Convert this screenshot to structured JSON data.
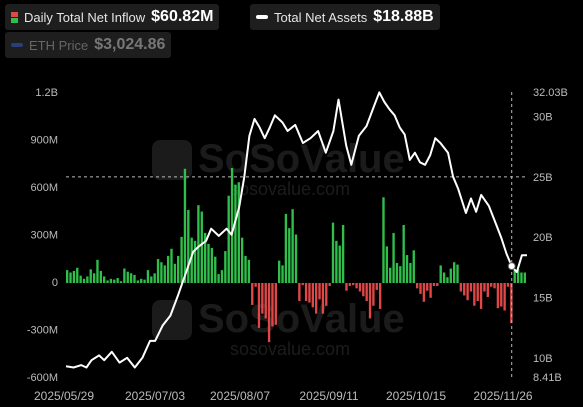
{
  "legend": {
    "inflow": {
      "label": "Daily Total Net Inflow",
      "value": "$60.82M",
      "icon": "two-color-bar-icon"
    },
    "assets": {
      "label": "Total Net Assets",
      "value": "$18.88B",
      "icon": "white-line-icon"
    },
    "eth": {
      "label": "ETH Price",
      "value": "$3,024.86",
      "icon": "blue-line-icon"
    }
  },
  "watermark": {
    "brand": "SoSoValue",
    "site": "sosovalue.com"
  },
  "colors": {
    "positive": "#2fbf4a",
    "negative": "#e04848",
    "line": "#ffffff",
    "background": "#000000",
    "eth": "#2a3f7a"
  },
  "chart_data": {
    "type": "bar",
    "x_tick_labels": [
      "2025/05/29",
      "2025/07/03",
      "2025/08/07",
      "2025/09/11",
      "2025/10/15",
      "2025/11/26"
    ],
    "x_range": [
      "2025-05-29",
      "2025-11-26"
    ],
    "left_axis": {
      "ticks": [
        "1.2B",
        "900M",
        "600M",
        "300M",
        "0",
        "-300M",
        "-600M"
      ],
      "ylim": [
        -600,
        1200
      ],
      "unit": "USD millions"
    },
    "right_axis": {
      "ticks": [
        "32.03B",
        "30B",
        "25B",
        "20B",
        "15B",
        "10B",
        "8.41B"
      ],
      "ylim": [
        8.41,
        32.03
      ],
      "unit": "USD billions"
    },
    "series": [
      {
        "name": "Daily Total Net Inflow",
        "type": "bar",
        "values": [
          75,
          60,
          70,
          90,
          40,
          20,
          35,
          80,
          55,
          140,
          70,
          35,
          10,
          20,
          15,
          25,
          5,
          85,
          65,
          55,
          45,
          10,
          20,
          15,
          75,
          35,
          55,
          145,
          125,
          105,
          165,
          210,
          115,
          165,
          285,
          715,
          455,
          280,
          260,
          485,
          445,
          310,
          240,
          215,
          160,
          50,
          75,
          195,
          545,
          720,
          615,
          630,
          280,
          165,
          140,
          -145,
          -30,
          -290,
          -200,
          -230,
          -380,
          -280,
          -270,
          135,
          105,
          430,
          340,
          460,
          300,
          -120,
          -20,
          -120,
          -130,
          -160,
          -200,
          -110,
          -200,
          -150,
          -25,
          375,
          260,
          230,
          360,
          -55,
          -25,
          -20,
          -40,
          -60,
          -90,
          -120,
          -230,
          -150,
          -50,
          -170,
          535,
          225,
          90,
          310,
          120,
          100,
          360,
          170,
          120,
          200,
          -40,
          -75,
          -125,
          -55,
          -100,
          -25,
          -25,
          105,
          60,
          30,
          85,
          125,
          110,
          -60,
          -85,
          -115,
          -60,
          -150,
          -120,
          -170,
          -60,
          -95,
          -30,
          -40,
          -165,
          -155,
          -180,
          -30,
          -260,
          80,
          80,
          60,
          60
        ]
      },
      {
        "name": "Total Net Assets",
        "type": "line",
        "x": [
          "2025-05-29",
          "2025-06-01",
          "2025-06-04",
          "2025-06-06",
          "2025-06-08",
          "2025-06-11",
          "2025-06-13",
          "2025-06-16",
          "2025-06-19",
          "2025-06-22",
          "2025-06-25",
          "2025-06-28",
          "2025-07-01",
          "2025-07-03",
          "2025-07-06",
          "2025-07-09",
          "2025-07-12",
          "2025-07-15",
          "2025-07-18",
          "2025-07-20",
          "2025-07-23",
          "2025-07-25",
          "2025-07-28",
          "2025-07-31",
          "2025-08-02",
          "2025-08-05",
          "2025-08-07",
          "2025-08-09",
          "2025-08-11",
          "2025-08-13",
          "2025-08-15",
          "2025-08-17",
          "2025-08-19",
          "2025-08-22",
          "2025-08-24",
          "2025-08-27",
          "2025-08-30",
          "2025-09-02",
          "2025-09-05",
          "2025-09-08",
          "2025-09-11",
          "2025-09-13",
          "2025-09-16",
          "2025-09-18",
          "2025-09-21",
          "2025-09-24",
          "2025-09-27",
          "2025-09-29",
          "2025-10-01",
          "2025-10-03",
          "2025-10-05",
          "2025-10-07",
          "2025-10-09",
          "2025-10-11",
          "2025-10-13",
          "2025-10-15",
          "2025-10-17",
          "2025-10-19",
          "2025-10-21",
          "2025-10-23",
          "2025-10-26",
          "2025-10-28",
          "2025-10-30",
          "2025-11-02",
          "2025-11-04",
          "2025-11-06",
          "2025-11-08",
          "2025-11-11",
          "2025-11-14",
          "2025-11-16",
          "2025-11-18",
          "2025-11-20",
          "2025-11-22",
          "2025-11-24",
          "2025-11-26"
        ],
        "values": [
          9.3,
          9.2,
          9.4,
          9.2,
          9.8,
          10.2,
          9.8,
          10.5,
          9.6,
          10.0,
          9.2,
          10.0,
          11.4,
          11.4,
          12.7,
          13.5,
          15.2,
          17.0,
          18.8,
          19.2,
          19.7,
          20.7,
          20.1,
          20.7,
          20.2,
          22.5,
          25.0,
          28.4,
          29.8,
          29.1,
          28.2,
          29.1,
          30.1,
          29.5,
          28.8,
          29.3,
          27.8,
          28.2,
          28.8,
          27.0,
          28.8,
          31.4,
          27.6,
          26.0,
          28.4,
          29.2,
          30.9,
          32.0,
          31.2,
          30.6,
          30.1,
          29.1,
          28.5,
          26.4,
          27.0,
          26.2,
          26.0,
          26.8,
          28.2,
          27.8,
          27.0,
          25.0,
          24.0,
          22.0,
          23.2,
          22.1,
          23.5,
          22.6,
          21.0,
          19.9,
          18.6,
          17.6,
          17.1,
          18.5,
          18.5
        ]
      }
    ],
    "markers": {
      "dashed_vertical_at": "2025-11-20",
      "dashed_horizontal_at_right_value": "25B"
    }
  }
}
